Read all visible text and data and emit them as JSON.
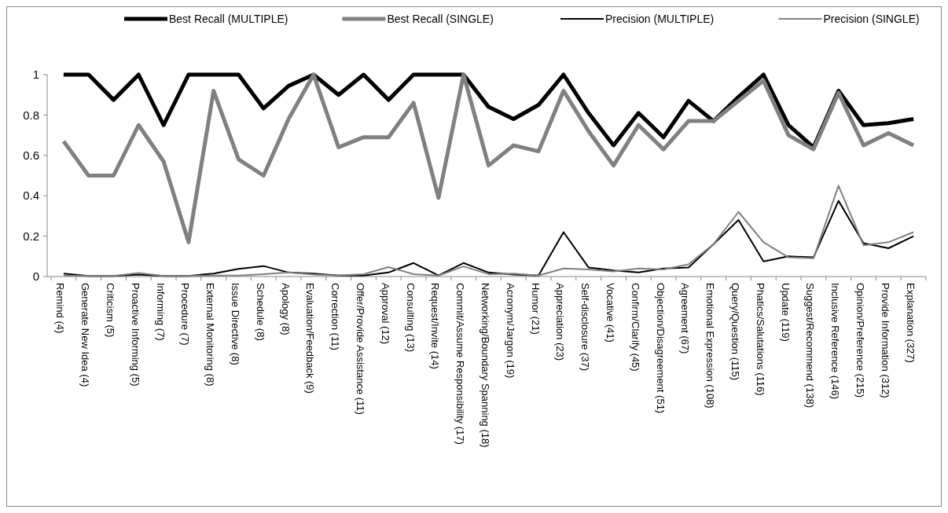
{
  "chart_data": {
    "type": "line",
    "categories": [
      "Remind (4)",
      "Generate New Idea (4)",
      "Criticism (5)",
      "Proactive Informing (5)",
      "Informing (7)",
      "Procedure (7)",
      "External Monitoring (8)",
      "Issue Directive (8)",
      "Schedule (8)",
      "Apology (8)",
      "Evaluation/Feedback (9)",
      "Correction (11)",
      "Offer/Provide Assistance (11)",
      "Approval (12)",
      "Consulting (13)",
      "Request/Invite (14)",
      "Commit/Assume Responsibility (17)",
      "Networking/Boundary Spanning (18)",
      "Acronym/Jargon (19)",
      "Humor (21)",
      "Appreciation (23)",
      "Self-disclosure (37)",
      "Vocative (41)",
      "Confirm/Clarify (45)",
      "Objection/Disagreement (51)",
      "Agreement (67)",
      "Emotional Expression (108)",
      "Query/Question (115)",
      "Phatics/Salutations (116)",
      "Update (119)",
      "Suggest/Recommend (138)",
      "Inclusive Reference (146)",
      "Opinion/Preference (215)",
      "Provide Information (312)",
      "Explanation (327)"
    ],
    "series": [
      {
        "name": "Best Recall (MULTIPLE)",
        "color": "#000000",
        "values": [
          1,
          1,
          0.875,
          1,
          0.75,
          1,
          1,
          1,
          0.833,
          0.944,
          1,
          0.9,
          1,
          0.875,
          1,
          1,
          1,
          0.84,
          0.78,
          0.85,
          1,
          0.81,
          0.65,
          0.81,
          0.69,
          0.87,
          0.77,
          0.89,
          1,
          0.75,
          0.64,
          0.92,
          0.75,
          0.76,
          0.78
        ]
      },
      {
        "name": "Best Recall (SINGLE)",
        "color": "#808080",
        "values": [
          0.67,
          0.5,
          0.5,
          0.75,
          0.57,
          0.17,
          0.92,
          0.58,
          0.5,
          0.78,
          1,
          0.64,
          0.69,
          0.69,
          0.86,
          0.39,
          1,
          0.55,
          0.65,
          0.62,
          0.92,
          0.72,
          0.55,
          0.75,
          0.63,
          0.77,
          0.77,
          0.87,
          0.97,
          0.7,
          0.63,
          0.91,
          0.65,
          0.71,
          0.65
        ]
      },
      {
        "name": "Precision (MULTIPLE)",
        "color": "#000000",
        "values": [
          0.015,
          0.003,
          0.003,
          0.01,
          0.003,
          0.003,
          0.015,
          0.038,
          0.052,
          0.02,
          0.015,
          0.005,
          0.005,
          0.02,
          0.067,
          0.005,
          0.067,
          0.02,
          0.01,
          0.005,
          0.22,
          0.045,
          0.03,
          0.02,
          0.04,
          0.045,
          0.16,
          0.28,
          0.075,
          0.1,
          0.095,
          0.375,
          0.165,
          0.14,
          0.2
        ]
      },
      {
        "name": "Precision (SINGLE)",
        "color": "#808080",
        "values": [
          0.005,
          0.003,
          0.003,
          0.018,
          0.003,
          0.003,
          0.005,
          0.005,
          0.012,
          0.02,
          0.01,
          0.005,
          0.012,
          0.047,
          0.012,
          0.005,
          0.05,
          0.012,
          0.015,
          0.005,
          0.04,
          0.035,
          0.025,
          0.04,
          0.035,
          0.06,
          0.16,
          0.32,
          0.17,
          0.095,
          0.09,
          0.45,
          0.155,
          0.17,
          0.22
        ]
      }
    ],
    "ylim": [
      0,
      1
    ],
    "yticks": [
      0,
      {
        "value": 0.2,
        "label": "0.2"
      },
      {
        "value": 0.4,
        "label": "0.4"
      },
      {
        "value": 0.6,
        "label": "0.6"
      },
      {
        "value": 0.8,
        "label": "0.8"
      },
      1
    ],
    "legend": "top",
    "grid": false,
    "marker": "none",
    "line_style": "solid"
  }
}
